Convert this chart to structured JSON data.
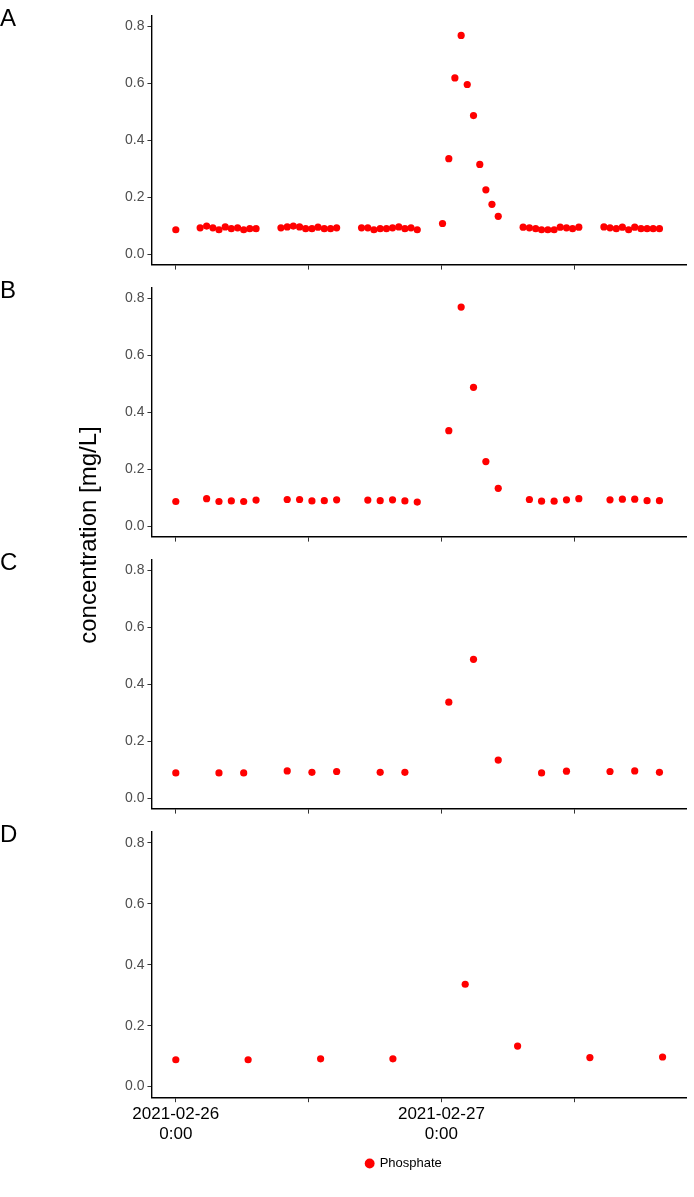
{
  "chart_data": [
    {
      "type": "scatter",
      "title": "A",
      "marker": "circle",
      "grid": false,
      "tick_labels": "y",
      "xlim": [
        "2021-02-25T21:48",
        "2021-02-27T22:06"
      ],
      "xticks": [
        {
          "value": "2021-02-26T00:00",
          "label": null
        },
        {
          "value": "2021-02-26T12:00",
          "label": null
        },
        {
          "value": "2021-02-27T00:00",
          "label": null
        },
        {
          "value": "2021-02-27T12:00",
          "label": null
        }
      ],
      "ylim": [
        -0.035,
        0.838
      ],
      "yticks": [
        {
          "value": 0,
          "label": "0.0"
        },
        {
          "value": 0.2,
          "label": "0.2"
        },
        {
          "value": 0.4,
          "label": "0.4"
        },
        {
          "value": 0.6,
          "label": "0.6"
        },
        {
          "value": 0.8,
          "label": "0.8"
        }
      ],
      "series": [
        {
          "color": "#ff0000",
          "x": [
            "2021-02-26T00:00",
            "2021-02-26T02:12",
            "2021-02-26T02:47",
            "2021-02-26T03:21",
            "2021-02-26T03:54",
            "2021-02-26T04:28",
            "2021-02-26T05:01",
            "2021-02-26T05:35",
            "2021-02-26T06:08",
            "2021-02-26T06:41",
            "2021-02-26T07:15",
            "2021-02-26T09:30",
            "2021-02-26T10:04",
            "2021-02-26T10:37",
            "2021-02-26T11:11",
            "2021-02-26T11:44",
            "2021-02-26T12:18",
            "2021-02-26T12:51",
            "2021-02-26T13:25",
            "2021-02-26T13:59",
            "2021-02-26T14:32",
            "2021-02-26T16:47",
            "2021-02-26T17:21",
            "2021-02-26T17:54",
            "2021-02-26T18:28",
            "2021-02-26T19:02",
            "2021-02-26T19:35",
            "2021-02-26T20:09",
            "2021-02-26T20:42",
            "2021-02-26T21:15",
            "2021-02-26T21:49",
            "2021-02-27T00:06",
            "2021-02-27T00:40",
            "2021-02-27T01:13",
            "2021-02-27T01:47",
            "2021-02-27T02:20",
            "2021-02-27T02:54",
            "2021-02-27T03:28",
            "2021-02-27T04:01",
            "2021-02-27T04:34",
            "2021-02-27T05:08",
            "2021-02-27T07:23",
            "2021-02-27T07:57",
            "2021-02-27T08:31",
            "2021-02-27T09:03",
            "2021-02-27T09:37",
            "2021-02-27T10:11",
            "2021-02-27T10:44",
            "2021-02-27T11:18",
            "2021-02-27T11:51",
            "2021-02-27T12:25",
            "2021-02-27T14:41",
            "2021-02-27T15:14",
            "2021-02-27T15:48",
            "2021-02-27T16:21",
            "2021-02-27T16:55",
            "2021-02-27T17:28",
            "2021-02-27T18:02",
            "2021-02-27T18:35",
            "2021-02-27T19:08",
            "2021-02-27T19:42"
          ],
          "values": [
            0.087,
            0.094,
            0.1,
            0.094,
            0.087,
            0.097,
            0.091,
            0.094,
            0.087,
            0.091,
            0.091,
            0.094,
            0.097,
            0.1,
            0.097,
            0.091,
            0.091,
            0.096,
            0.091,
            0.091,
            0.094,
            0.094,
            0.094,
            0.087,
            0.091,
            0.091,
            0.094,
            0.097,
            0.091,
            0.094,
            0.087,
            0.109,
            0.336,
            0.619,
            0.768,
            0.596,
            0.487,
            0.316,
            0.227,
            0.176,
            0.134,
            0.096,
            0.094,
            0.091,
            0.087,
            0.087,
            0.087,
            0.096,
            0.094,
            0.091,
            0.096,
            0.097,
            0.094,
            0.091,
            0.096,
            0.087,
            0.096,
            0.091,
            0.091,
            0.091,
            0.091
          ]
        }
      ]
    },
    {
      "type": "scatter",
      "title": "B",
      "ylabel": "concentration [mg/L]",
      "marker": "circle",
      "grid": false,
      "tick_labels": "y",
      "xlim": [
        "2021-02-25T21:48",
        "2021-02-27T22:06"
      ],
      "xticks": [
        {
          "value": "2021-02-26T00:00",
          "label": null
        },
        {
          "value": "2021-02-26T12:00",
          "label": null
        },
        {
          "value": "2021-02-27T00:00",
          "label": null
        },
        {
          "value": "2021-02-27T12:00",
          "label": null
        }
      ],
      "ylim": [
        -0.035,
        0.838
      ],
      "yticks": [
        {
          "value": 0,
          "label": "0.0"
        },
        {
          "value": 0.2,
          "label": "0.2"
        },
        {
          "value": 0.4,
          "label": "0.4"
        },
        {
          "value": 0.6,
          "label": "0.6"
        },
        {
          "value": 0.8,
          "label": "0.8"
        }
      ],
      "series": [
        {
          "color": "#ff0000",
          "x": [
            "2021-02-26T00:00",
            "2021-02-26T02:47",
            "2021-02-26T03:54",
            "2021-02-26T05:01",
            "2021-02-26T06:08",
            "2021-02-26T07:15",
            "2021-02-26T10:04",
            "2021-02-26T11:11",
            "2021-02-26T12:18",
            "2021-02-26T13:25",
            "2021-02-26T14:32",
            "2021-02-26T17:21",
            "2021-02-26T18:28",
            "2021-02-26T19:35",
            "2021-02-26T20:42",
            "2021-02-26T21:49",
            "2021-02-27T00:40",
            "2021-02-27T01:47",
            "2021-02-27T02:54",
            "2021-02-27T04:01",
            "2021-02-27T05:08",
            "2021-02-27T07:57",
            "2021-02-27T09:03",
            "2021-02-27T10:11",
            "2021-02-27T11:18",
            "2021-02-27T12:25",
            "2021-02-27T15:14",
            "2021-02-27T16:21",
            "2021-02-27T17:28",
            "2021-02-27T18:35",
            "2021-02-27T19:42"
          ],
          "values": [
            0.088,
            0.098,
            0.088,
            0.09,
            0.088,
            0.093,
            0.095,
            0.095,
            0.09,
            0.091,
            0.094,
            0.093,
            0.091,
            0.094,
            0.09,
            0.086,
            0.336,
            0.769,
            0.488,
            0.228,
            0.134,
            0.095,
            0.089,
            0.089,
            0.094,
            0.098,
            0.094,
            0.096,
            0.096,
            0.091,
            0.091
          ]
        }
      ]
    },
    {
      "type": "scatter",
      "title": "C",
      "marker": "circle",
      "grid": false,
      "tick_labels": "y",
      "xlim": [
        "2021-02-25T21:48",
        "2021-02-27T22:06"
      ],
      "xticks": [
        {
          "value": "2021-02-26T00:00",
          "label": null
        },
        {
          "value": "2021-02-26T12:00",
          "label": null
        },
        {
          "value": "2021-02-27T00:00",
          "label": null
        },
        {
          "value": "2021-02-27T12:00",
          "label": null
        }
      ],
      "ylim": [
        -0.035,
        0.838
      ],
      "yticks": [
        {
          "value": 0,
          "label": "0.0"
        },
        {
          "value": 0.2,
          "label": "0.2"
        },
        {
          "value": 0.4,
          "label": "0.4"
        },
        {
          "value": 0.6,
          "label": "0.6"
        },
        {
          "value": 0.8,
          "label": "0.8"
        }
      ],
      "series": [
        {
          "color": "#ff0000",
          "x": [
            "2021-02-26T00:00",
            "2021-02-26T03:54",
            "2021-02-26T06:08",
            "2021-02-26T10:04",
            "2021-02-26T12:18",
            "2021-02-26T14:32",
            "2021-02-26T18:28",
            "2021-02-26T20:42",
            "2021-02-27T00:40",
            "2021-02-27T02:54",
            "2021-02-27T05:08",
            "2021-02-27T09:03",
            "2021-02-27T11:18",
            "2021-02-27T15:14",
            "2021-02-27T17:28",
            "2021-02-27T19:42"
          ],
          "values": [
            0.09,
            0.09,
            0.09,
            0.097,
            0.092,
            0.095,
            0.092,
            0.092,
            0.338,
            0.488,
            0.135,
            0.09,
            0.096,
            0.095,
            0.097,
            0.092
          ]
        }
      ]
    },
    {
      "type": "scatter",
      "title": "D",
      "marker": "circle",
      "grid": false,
      "legend": "bottom",
      "xlim": [
        "2021-02-25T21:48",
        "2021-02-27T22:06"
      ],
      "xticks": [
        {
          "value": "2021-02-26T00:00",
          "label": "2021-02-26\n0:00"
        },
        {
          "value": "2021-02-26T12:00",
          "label": null
        },
        {
          "value": "2021-02-27T00:00",
          "label": "2021-02-27\n0:00"
        },
        {
          "value": "2021-02-27T12:00",
          "label": null
        }
      ],
      "ylim": [
        -0.035,
        0.838
      ],
      "yticks": [
        {
          "value": 0,
          "label": "0.0"
        },
        {
          "value": 0.2,
          "label": "0.2"
        },
        {
          "value": 0.4,
          "label": "0.4"
        },
        {
          "value": 0.6,
          "label": "0.6"
        },
        {
          "value": 0.8,
          "label": "0.8"
        }
      ],
      "series": [
        {
          "name": "Phosphate",
          "color": "#ff0000",
          "x": [
            "2021-02-26T00:00",
            "2021-02-26T06:32",
            "2021-02-26T13:05",
            "2021-02-26T19:37",
            "2021-02-27T02:09",
            "2021-02-27T06:53",
            "2021-02-27T13:25",
            "2021-02-27T19:59"
          ],
          "values": [
            0.088,
            0.088,
            0.091,
            0.091,
            0.336,
            0.133,
            0.095,
            0.097
          ]
        }
      ]
    }
  ]
}
